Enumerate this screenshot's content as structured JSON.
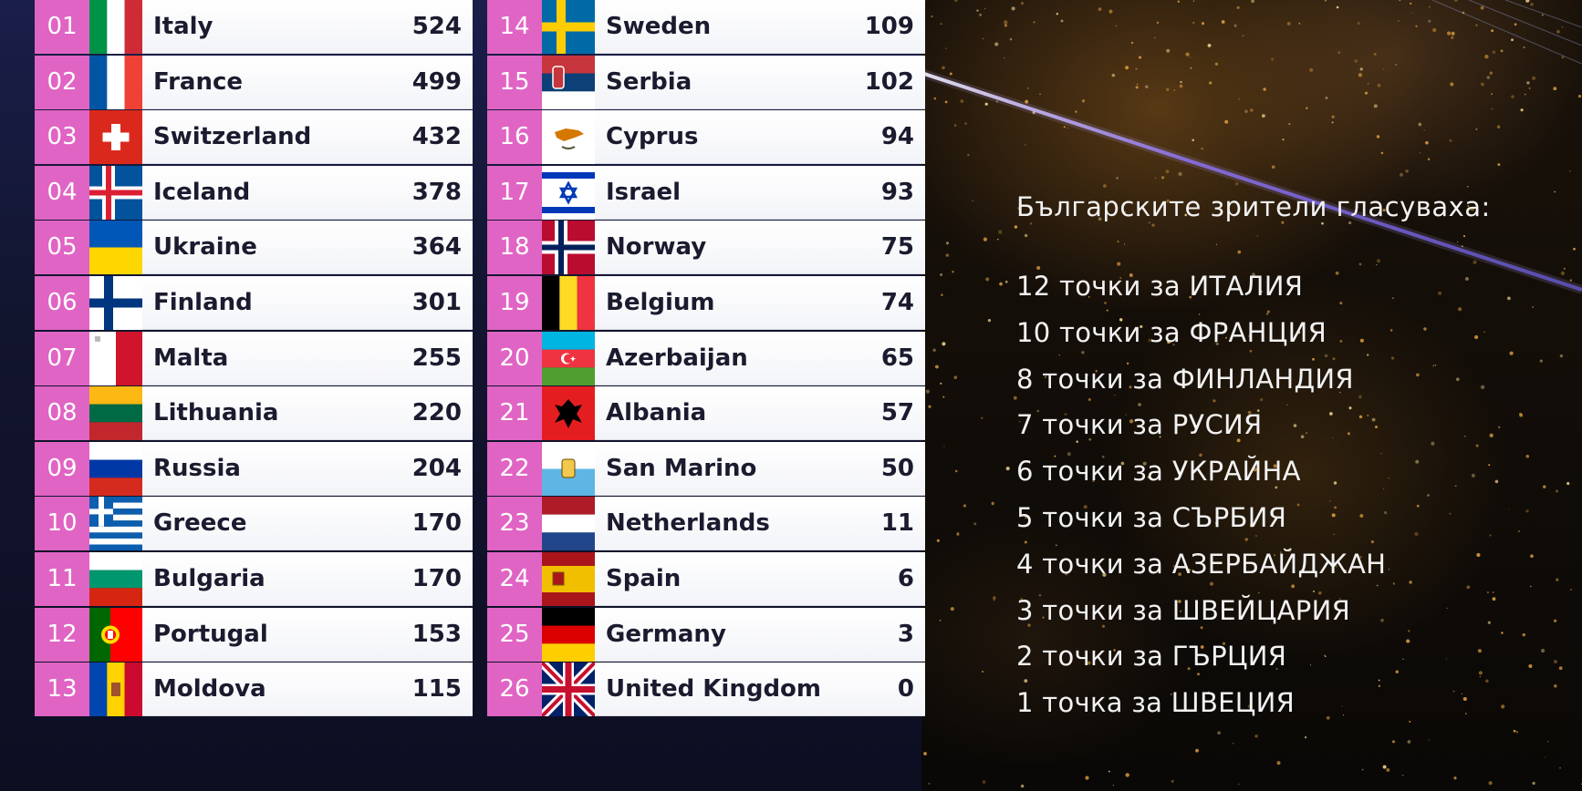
{
  "scoreboard": {
    "left": [
      {
        "rank": "01",
        "country": "Italy",
        "points": "524",
        "flag": "italy-flag"
      },
      {
        "rank": "02",
        "country": "France",
        "points": "499",
        "flag": "france-flag"
      },
      {
        "rank": "03",
        "country": "Switzerland",
        "points": "432",
        "flag": "switzerland-flag"
      },
      {
        "rank": "04",
        "country": "Iceland",
        "points": "378",
        "flag": "iceland-flag"
      },
      {
        "rank": "05",
        "country": "Ukraine",
        "points": "364",
        "flag": "ukraine-flag"
      },
      {
        "rank": "06",
        "country": "Finland",
        "points": "301",
        "flag": "finland-flag"
      },
      {
        "rank": "07",
        "country": "Malta",
        "points": "255",
        "flag": "malta-flag"
      },
      {
        "rank": "08",
        "country": "Lithuania",
        "points": "220",
        "flag": "lithuania-flag"
      },
      {
        "rank": "09",
        "country": "Russia",
        "points": "204",
        "flag": "russia-flag"
      },
      {
        "rank": "10",
        "country": "Greece",
        "points": "170",
        "flag": "greece-flag"
      },
      {
        "rank": "11",
        "country": "Bulgaria",
        "points": "170",
        "flag": "bulgaria-flag"
      },
      {
        "rank": "12",
        "country": "Portugal",
        "points": "153",
        "flag": "portugal-flag"
      },
      {
        "rank": "13",
        "country": "Moldova",
        "points": "115",
        "flag": "moldova-flag"
      }
    ],
    "right": [
      {
        "rank": "14",
        "country": "Sweden",
        "points": "109",
        "flag": "sweden-flag"
      },
      {
        "rank": "15",
        "country": "Serbia",
        "points": "102",
        "flag": "serbia-flag"
      },
      {
        "rank": "16",
        "country": "Cyprus",
        "points": "94",
        "flag": "cyprus-flag"
      },
      {
        "rank": "17",
        "country": "Israel",
        "points": "93",
        "flag": "israel-flag"
      },
      {
        "rank": "18",
        "country": "Norway",
        "points": "75",
        "flag": "norway-flag"
      },
      {
        "rank": "19",
        "country": "Belgium",
        "points": "74",
        "flag": "belgium-flag"
      },
      {
        "rank": "20",
        "country": "Azerbaijan",
        "points": "65",
        "flag": "azerbaijan-flag"
      },
      {
        "rank": "21",
        "country": "Albania",
        "points": "57",
        "flag": "albania-flag"
      },
      {
        "rank": "22",
        "country": "San Marino",
        "points": "50",
        "flag": "san-marino-flag"
      },
      {
        "rank": "23",
        "country": "Netherlands",
        "points": "11",
        "flag": "netherlands-flag"
      },
      {
        "rank": "24",
        "country": "Spain",
        "points": "6",
        "flag": "spain-flag"
      },
      {
        "rank": "25",
        "country": "Germany",
        "points": "3",
        "flag": "germany-flag"
      },
      {
        "rank": "26",
        "country": "United Kingdom",
        "points": "0",
        "flag": "united-kingdom-flag"
      }
    ]
  },
  "votes": {
    "heading": "Българските зрители гласуваха:",
    "lines": [
      "12 точки за ИТАЛИЯ",
      "10 точки за ФРАНЦИЯ",
      "8 точки за ФИНЛАНДИЯ",
      "7 точки за РУСИЯ",
      "6 точки за УКРАЙНА",
      "5 точки за СЪРБИЯ",
      "4 точки за АЗЕРБАЙДЖАН",
      "3 точки за ШВЕЙЦАРИЯ",
      "2 точки за ГЪРЦИЯ",
      "1 точка за ШВЕЦИЯ"
    ]
  },
  "colors": {
    "rank_bg": "#e064c4",
    "row_bg": "#ffffff",
    "text_dark": "#1a1b2e",
    "votes_text": "#f2f2f2"
  }
}
